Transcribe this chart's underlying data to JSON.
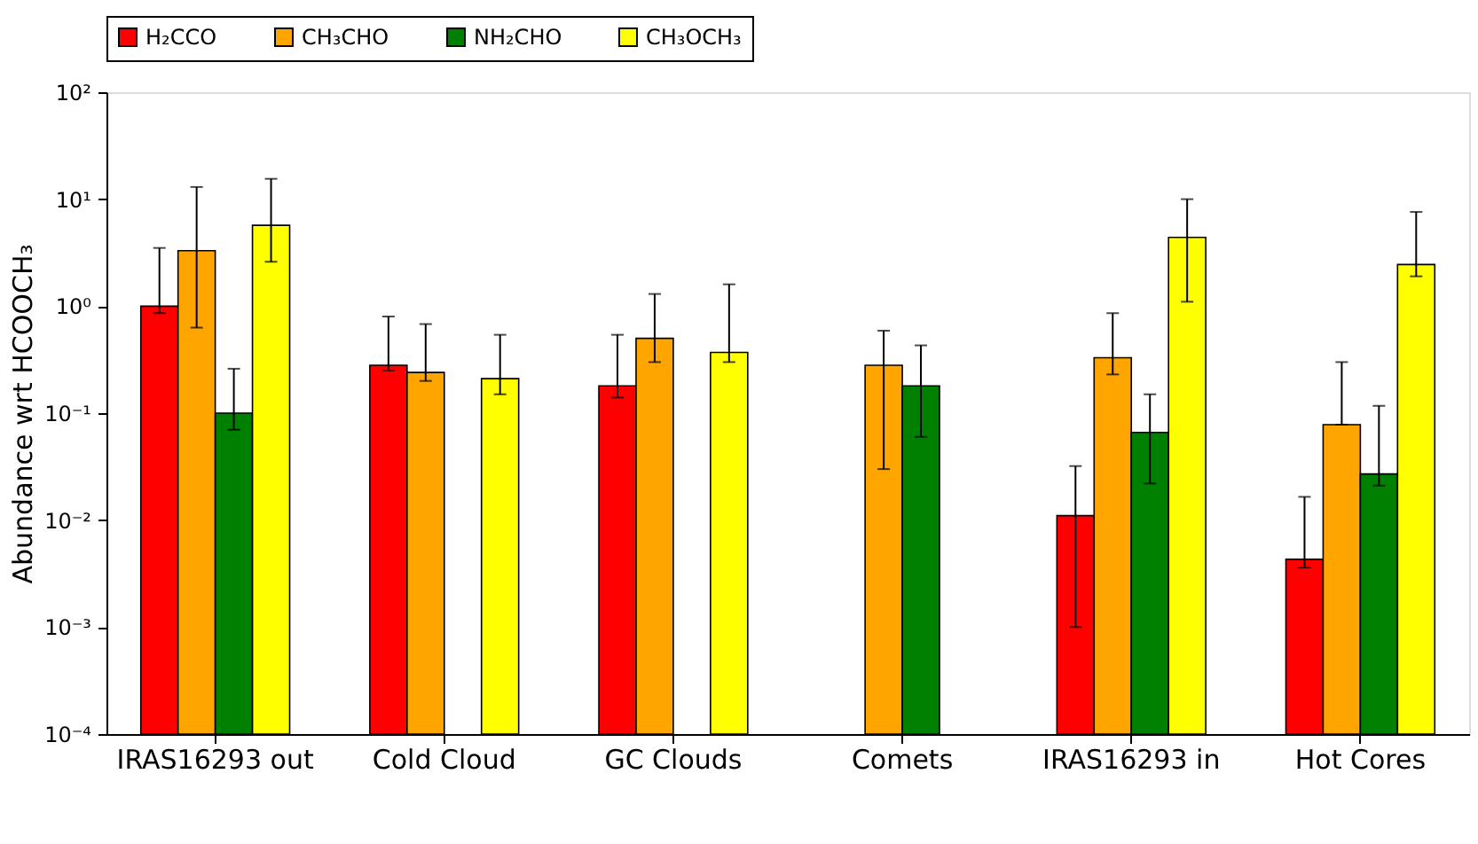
{
  "chart_data": {
    "type": "bar",
    "ylabel": "Abundance wrt HCOOCH₃",
    "categories": [
      "IRAS16293 out",
      "Cold Cloud",
      "GC Clouds",
      "Comets",
      "IRAS16293 in",
      "Hot Cores"
    ],
    "series": [
      {
        "name": "H₂CCO",
        "color": "#ff0000",
        "values": [
          1.0,
          0.28,
          0.18,
          null,
          0.011,
          0.0043
        ],
        "errors": [
          [
            0.86,
            3.5
          ],
          [
            0.25,
            0.8
          ],
          [
            0.14,
            0.54
          ],
          null,
          [
            0.001,
            0.032
          ],
          [
            0.0036,
            0.0165
          ]
        ]
      },
      {
        "name": "CH₃CHO",
        "color": "#ffa500",
        "values": [
          3.3,
          0.24,
          0.5,
          0.28,
          0.33,
          0.078
        ],
        "errors": [
          [
            0.63,
            13
          ],
          [
            0.2,
            0.68
          ],
          [
            0.3,
            1.3
          ],
          [
            0.03,
            0.59
          ],
          [
            0.23,
            0.86
          ],
          [
            0.078,
            0.3
          ]
        ]
      },
      {
        "name": "NH₂CHO",
        "color": "#008000",
        "values": [
          0.1,
          null,
          null,
          0.18,
          0.066,
          0.027
        ],
        "errors": [
          [
            0.07,
            0.26
          ],
          null,
          null,
          [
            0.06,
            0.43
          ],
          [
            0.022,
            0.15
          ],
          [
            0.021,
            0.117
          ]
        ]
      },
      {
        "name": "CH₃OCH₃",
        "color": "#ffff00",
        "values": [
          5.7,
          0.21,
          0.37,
          null,
          4.4,
          2.45
        ],
        "errors": [
          [
            2.6,
            15.5
          ],
          [
            0.15,
            0.54
          ],
          [
            0.3,
            1.6
          ],
          null,
          [
            1.1,
            10
          ],
          [
            1.9,
            7.6
          ]
        ]
      }
    ],
    "log": true,
    "ylim": [
      0.0001,
      100
    ],
    "yticks": [
      {
        "value": 0.0001,
        "label": "10⁻⁴"
      },
      {
        "value": 0.001,
        "label": "10⁻³"
      },
      {
        "value": 0.01,
        "label": "10⁻²"
      },
      {
        "value": 0.1,
        "label": "10⁻¹"
      },
      {
        "value": 1,
        "label": "10⁰"
      },
      {
        "value": 10,
        "label": "10¹"
      },
      {
        "value": 100,
        "label": "10²"
      }
    ],
    "legend": "top",
    "grid": false
  }
}
